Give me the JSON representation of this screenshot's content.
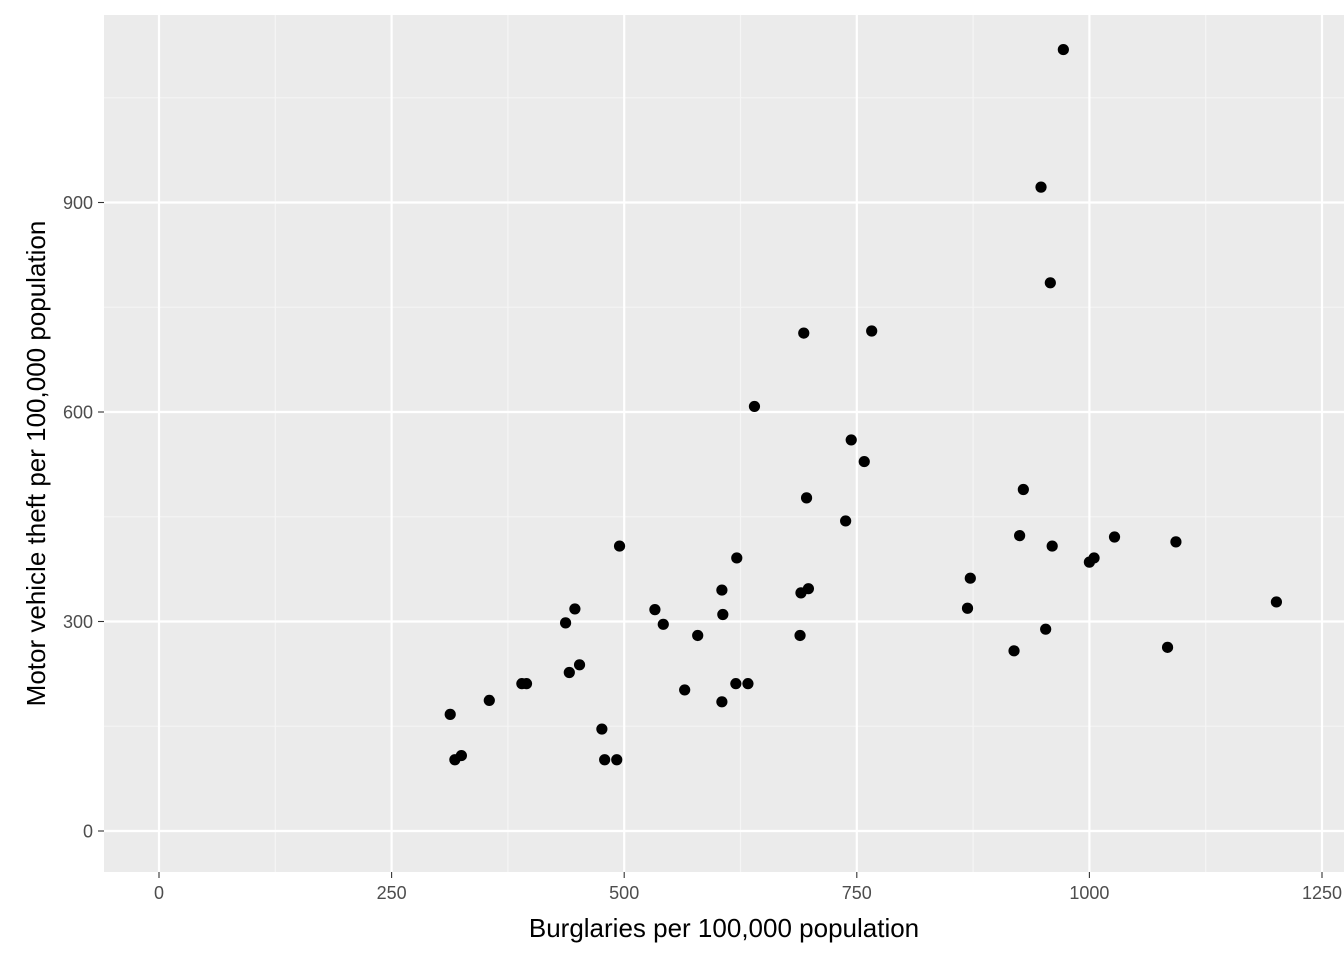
{
  "chart_data": {
    "type": "scatter",
    "title": "",
    "xlabel": "Burglaries per 100,000 population",
    "ylabel": "Motor vehicle theft per 100,000 population",
    "xlim": [
      -30,
      1250
    ],
    "ylim": [
      -55,
      1170
    ],
    "x_ticks": [
      0,
      250,
      500,
      750,
      1000,
      1250
    ],
    "x_tick_labels": [
      "0",
      "250",
      "500",
      "750",
      "1000",
      "1250"
    ],
    "y_ticks": [
      0,
      300,
      600,
      900
    ],
    "y_tick_labels": [
      "0",
      "300",
      "600",
      "900"
    ],
    "grid": true,
    "legend": "none",
    "colors": {
      "panel_background": "#ebebeb",
      "grid_major": "#ffffff",
      "grid_minor": "#f5f5f5",
      "point": "#000000",
      "tick_mark": "#333333"
    },
    "series": [
      {
        "x": [
          313,
          318,
          325,
          355,
          390,
          395,
          437,
          441,
          447,
          452,
          476,
          479,
          492,
          495,
          533,
          542,
          565,
          579,
          605,
          605,
          606,
          620,
          621,
          633,
          640,
          689,
          690,
          693,
          696,
          698,
          738,
          744,
          758,
          766,
          869,
          872,
          919,
          925,
          929,
          948,
          953,
          958,
          960,
          972,
          1000,
          1005,
          1027,
          1084,
          1093,
          1201
        ],
        "y": [
          167,
          102,
          108,
          187,
          211,
          211,
          298,
          227,
          318,
          238,
          146,
          102,
          102,
          408,
          317,
          296,
          202,
          280,
          345,
          185,
          310,
          211,
          391,
          211,
          608,
          280,
          341,
          713,
          477,
          347,
          444,
          560,
          529,
          716,
          319,
          362,
          258,
          423,
          489,
          922,
          289,
          785,
          408,
          1119,
          385,
          391,
          421,
          263,
          414,
          328
        ]
      }
    ]
  }
}
